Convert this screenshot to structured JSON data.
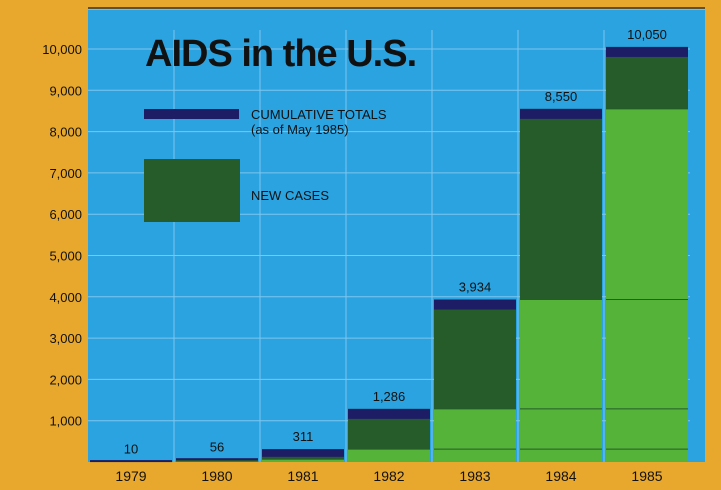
{
  "colors": {
    "frame": "#e8a82e",
    "plot_background": "#2aa3e0",
    "grid": "#7ec6ee",
    "cumulative_cap": "#1d1d66",
    "new_cases": "#255c29",
    "prior_totals": "#55b33a",
    "top_rule": "#333333"
  },
  "chart_data": {
    "type": "bar",
    "title": "AIDS in the U.S.",
    "xlabel": "",
    "ylabel": "",
    "ylim": [
      0,
      10500
    ],
    "grid": true,
    "legend_position": "top-left",
    "legend": [
      {
        "key": "cumulative",
        "label_lines": [
          "CUMULATIVE TOTALS",
          "(as of May 1985)"
        ]
      },
      {
        "key": "new_cases",
        "label_lines": [
          "NEW CASES"
        ]
      }
    ],
    "y_ticks": [
      {
        "value": 1000,
        "label": "1,000"
      },
      {
        "value": 2000,
        "label": "2,000"
      },
      {
        "value": 3000,
        "label": "3,000"
      },
      {
        "value": 4000,
        "label": "4,000"
      },
      {
        "value": 5000,
        "label": "5,000"
      },
      {
        "value": 6000,
        "label": "6,000"
      },
      {
        "value": 7000,
        "label": "7,000"
      },
      {
        "value": 8000,
        "label": "8,000"
      },
      {
        "value": 9000,
        "label": "9,000"
      },
      {
        "value": 10000,
        "label": "10,000"
      }
    ],
    "categories": [
      "1979",
      "1980",
      "1981",
      "1982",
      "1983",
      "1984",
      "1985"
    ],
    "cumulative_totals": [
      10,
      56,
      311,
      1286,
      3934,
      8550,
      10050
    ],
    "cumulative_labels": [
      "10",
      "56",
      "311",
      "1,286",
      "3,934",
      "8,550",
      "10,050"
    ]
  }
}
